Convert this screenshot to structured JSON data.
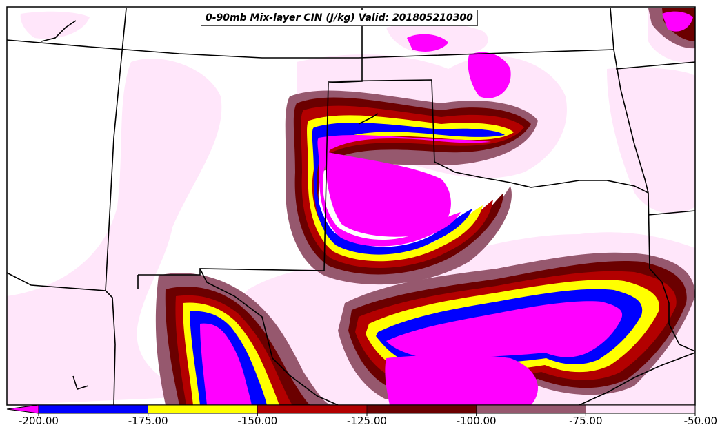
{
  "title": "0-90mb Mix-layer CIN (J/kg) Valid: 201805210300",
  "colorbar": {
    "tick_labels": [
      "-200.00",
      "-175.00",
      "-150.00",
      "-125.00",
      "-100.00",
      "-75.00",
      "-50.00"
    ],
    "bins": [
      {
        "color": "#0000ff"
      },
      {
        "color": "#ffff00"
      },
      {
        "color": "#b30000"
      },
      {
        "color": "#6b0000"
      },
      {
        "color": "#96586e"
      },
      {
        "color": "#ffe6fa"
      }
    ],
    "extend_min_color": "#ff00ff"
  },
  "map": {
    "background_color": "#ffffff",
    "boundary_color": "#000000"
  }
}
